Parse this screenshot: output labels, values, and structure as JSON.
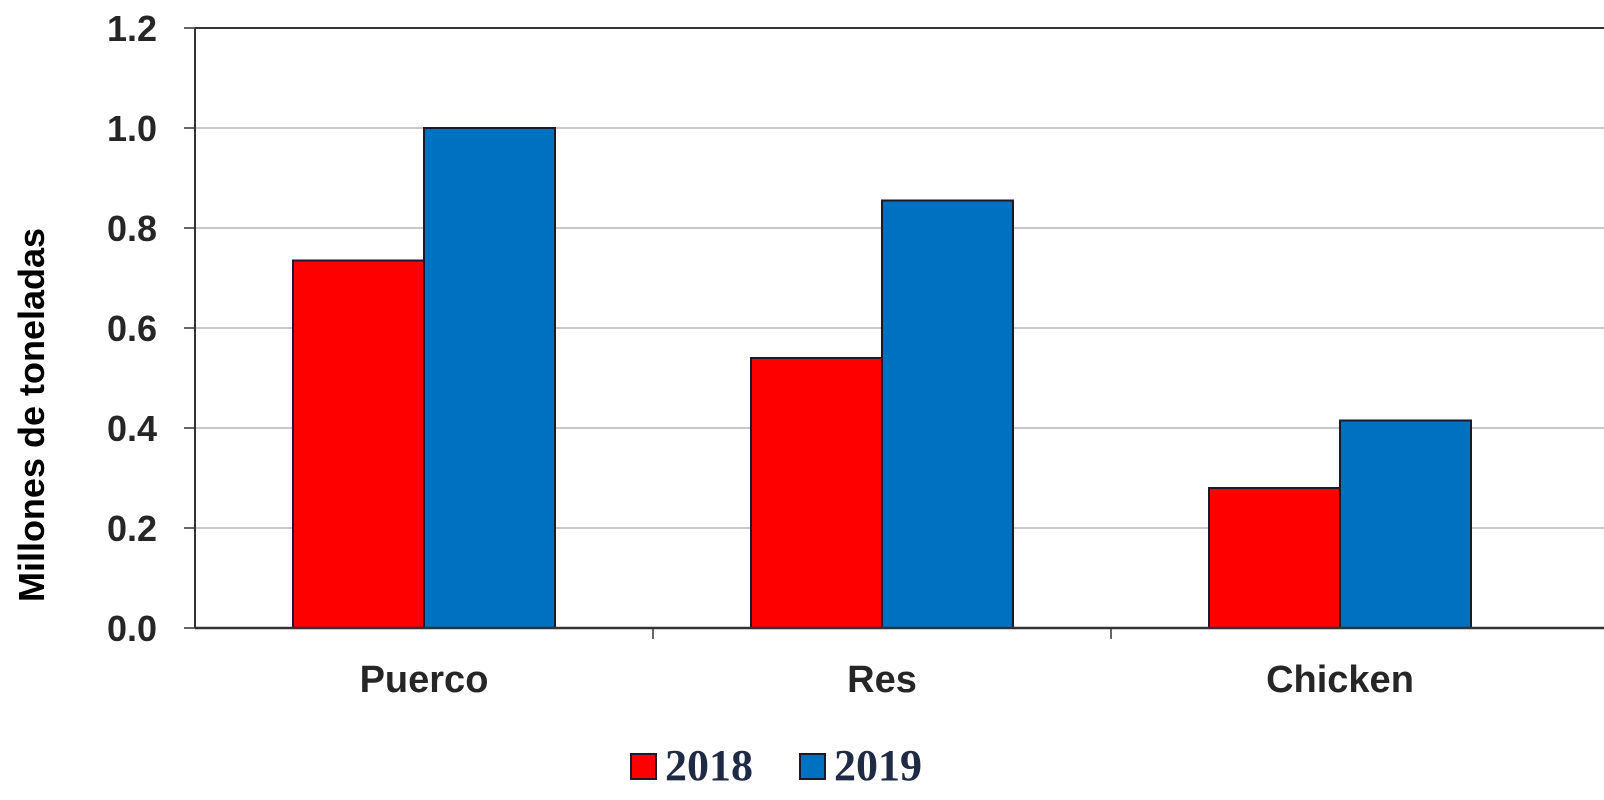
{
  "chart_data": {
    "type": "bar",
    "categories": [
      "Puerco",
      "Res",
      "Chicken"
    ],
    "series": [
      {
        "name": "2018",
        "values": [
          0.735,
          0.54,
          0.28
        ],
        "color": "#ff0000"
      },
      {
        "name": "2019",
        "values": [
          1.0,
          0.855,
          0.415
        ],
        "color": "#0070c0"
      }
    ],
    "ylabel": "Millones de toneladas",
    "xlabel": "",
    "ylim": [
      0,
      1.2
    ],
    "yticks": [
      "0.0",
      "0.2",
      "0.4",
      "0.6",
      "0.8",
      "1.0",
      "1.2"
    ],
    "ytick_values": [
      0,
      0.2,
      0.4,
      0.6,
      0.8,
      1.0,
      1.2
    ],
    "grid": true,
    "legend_position": "bottom-center"
  }
}
